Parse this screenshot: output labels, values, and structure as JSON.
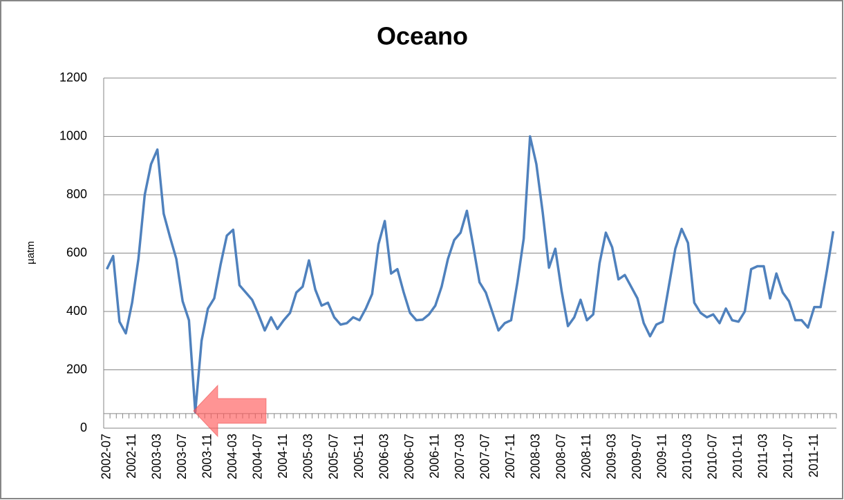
{
  "chart_data": {
    "type": "line",
    "title": "Oceano",
    "y_label": "µatm",
    "categories": [
      "2002-07",
      null,
      null,
      null,
      "2002-11",
      null,
      null,
      null,
      "2003-03",
      null,
      null,
      null,
      "2003-07",
      null,
      null,
      null,
      "2003-11",
      null,
      null,
      null,
      "2004-03",
      null,
      null,
      null,
      "2004-07",
      null,
      null,
      null,
      "2004-11",
      null,
      null,
      null,
      "2005-03",
      null,
      null,
      null,
      "2005-07",
      null,
      null,
      null,
      "2005-11",
      null,
      null,
      null,
      "2006-03",
      null,
      null,
      null,
      "2006-07",
      null,
      null,
      null,
      "2006-11",
      null,
      null,
      null,
      "2007-03",
      null,
      null,
      null,
      "2007-07",
      null,
      null,
      null,
      "2007-11",
      null,
      null,
      null,
      "2008-03",
      null,
      null,
      null,
      "2008-07",
      null,
      null,
      null,
      "2008-11",
      null,
      null,
      null,
      "2009-03",
      null,
      null,
      null,
      "2009-07",
      null,
      null,
      null,
      "2009-11",
      null,
      null,
      null,
      "2010-03",
      null,
      null,
      null,
      "2010-07",
      null,
      null,
      null,
      "2010-11",
      null,
      null,
      null,
      "2011-03",
      null,
      null,
      null,
      "2011-07",
      null,
      null,
      null,
      "2011-11",
      null,
      null,
      null
    ],
    "values": [
      545,
      590,
      365,
      325,
      430,
      580,
      800,
      905,
      955,
      735,
      655,
      580,
      435,
      370,
      55,
      300,
      410,
      445,
      560,
      660,
      680,
      490,
      465,
      440,
      390,
      335,
      380,
      340,
      370,
      395,
      465,
      485,
      575,
      475,
      420,
      430,
      380,
      355,
      360,
      380,
      370,
      410,
      460,
      630,
      710,
      530,
      545,
      465,
      395,
      370,
      372,
      390,
      420,
      485,
      580,
      645,
      670,
      745,
      625,
      500,
      465,
      400,
      335,
      360,
      370,
      500,
      650,
      1000,
      905,
      740,
      550,
      615,
      470,
      350,
      380,
      440,
      370,
      390,
      565,
      670,
      620,
      510,
      525,
      485,
      445,
      360,
      315,
      355,
      365,
      490,
      615,
      683,
      635,
      430,
      395,
      380,
      390,
      360,
      410,
      370,
      365,
      400,
      545,
      555,
      555,
      445,
      530,
      465,
      435,
      370,
      370,
      345,
      415,
      415,
      540,
      675
    ],
    "color": "#4f81bd",
    "ylim": [
      0,
      1200
    ],
    "yticks": [
      0,
      200,
      400,
      600,
      800,
      1000,
      1200
    ],
    "grid": true,
    "x_axis_crossing": 50
  }
}
